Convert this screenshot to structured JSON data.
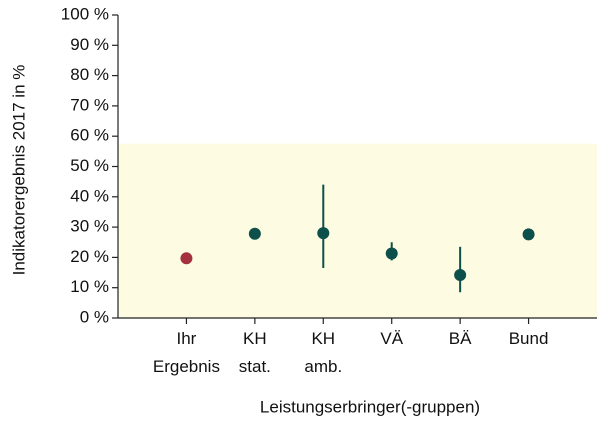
{
  "chart_data": {
    "type": "dot_errorbar",
    "ylabel": "Indikatorergebnis 2017 in %",
    "xlabel": "Leistungserbringer(-gruppen)",
    "categories": [
      "Ihr Ergebnis",
      "KH stat.",
      "KH amb.",
      "VÄ",
      "BÄ",
      "Bund"
    ],
    "values": [
      19.7,
      27.8,
      28,
      21.3,
      14.2,
      27.6
    ],
    "lower": [
      null,
      null,
      16.5,
      19,
      8.5,
      null
    ],
    "upper": [
      null,
      null,
      44,
      25,
      23.5,
      null
    ],
    "colors": [
      "#a3323c",
      "#0d4f4a",
      "#0d4f4a",
      "#0d4f4a",
      "#0d4f4a",
      "#0d4f4a"
    ],
    "reference_range": [
      0,
      57.5
    ],
    "reference_color": "#fdfbe1",
    "ylim": [
      0,
      100
    ],
    "yticks": [
      {
        "value": 0,
        "label": "0 %"
      },
      {
        "value": 10,
        "label": "10 %"
      },
      {
        "value": 20,
        "label": "20 %"
      },
      {
        "value": 30,
        "label": "30 %"
      },
      {
        "value": 40,
        "label": "40 %"
      },
      {
        "value": 50,
        "label": "50 %"
      },
      {
        "value": 60,
        "label": "60 %"
      },
      {
        "value": 70,
        "label": "70 %"
      },
      {
        "value": 80,
        "label": "80 %"
      },
      {
        "value": 90,
        "label": "90 %"
      },
      {
        "value": 100,
        "label": "100 %"
      }
    ]
  }
}
